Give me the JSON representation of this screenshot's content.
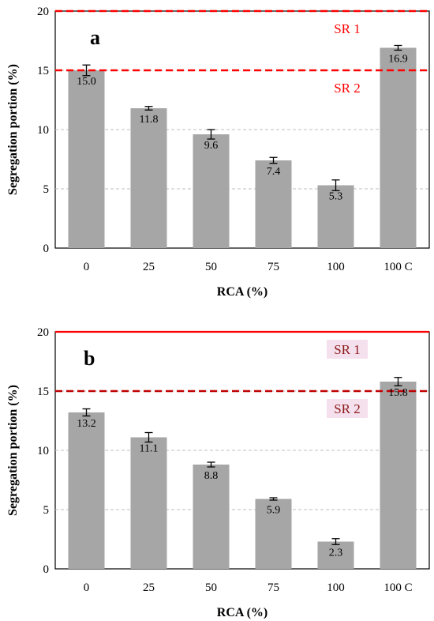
{
  "colors": {
    "bar": "#a6a6a6",
    "grid": "#bfbfbf",
    "errorbar": "#000000",
    "ref_a": "#ff0000",
    "ref_b": "#c00000",
    "ref_b_top": "#ff0000",
    "ref_b_label": "#8b1a1a",
    "ref_b_label_bg": "#f5e0ee"
  },
  "chart_data": [
    {
      "type": "bar",
      "panel": "a",
      "xlabel": "RCA (%)",
      "ylabel": "Segregation portion (%)",
      "categories": [
        "0",
        "25",
        "50",
        "75",
        "100",
        "100 C"
      ],
      "values": [
        15.0,
        11.8,
        9.6,
        7.4,
        5.3,
        16.9
      ],
      "value_labels": [
        "15.0",
        "11.8",
        "9.6",
        "7.4",
        "5.3",
        "16.9"
      ],
      "error": [
        0.45,
        0.15,
        0.4,
        0.25,
        0.45,
        0.2
      ],
      "ylim": [
        0,
        20
      ],
      "yticks": [
        "0",
        "5",
        "10",
        "15",
        "20"
      ],
      "grid": true,
      "reference_lines": [
        {
          "label": "SR 1",
          "value": 20
        },
        {
          "label": "SR 2",
          "value": 15
        }
      ]
    },
    {
      "type": "bar",
      "panel": "b",
      "xlabel": "RCA (%)",
      "ylabel": "Segregation portion (%)",
      "categories": [
        "0",
        "25",
        "50",
        "75",
        "100",
        "100 C"
      ],
      "values": [
        13.2,
        11.1,
        8.8,
        5.9,
        2.3,
        15.8
      ],
      "value_labels": [
        "13.2",
        "11.1",
        "8.8",
        "5.9",
        "2.3",
        "15.8"
      ],
      "error": [
        0.3,
        0.4,
        0.2,
        0.1,
        0.25,
        0.35
      ],
      "ylim": [
        0,
        20
      ],
      "yticks": [
        "0",
        "5",
        "10",
        "15",
        "20"
      ],
      "grid": true,
      "reference_lines": [
        {
          "label": "SR 1",
          "value": 20
        },
        {
          "label": "SR 2",
          "value": 15
        }
      ]
    }
  ]
}
